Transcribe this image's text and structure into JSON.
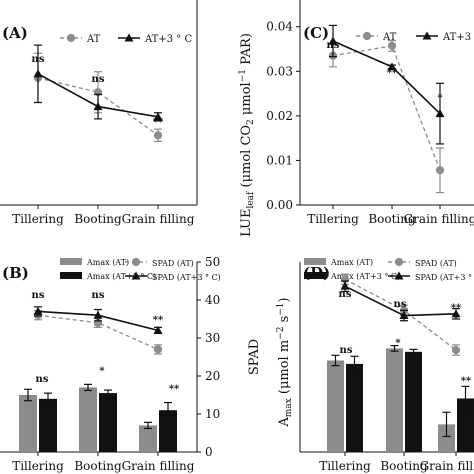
{
  "chart_data": [
    {
      "panel": "(A)",
      "type": "line",
      "categories": [
        "Tillering",
        "Booting",
        "Grain filling"
      ],
      "series": [
        {
          "name": "AT",
          "values": [
            0.62,
            0.55,
            0.34
          ],
          "err": [
            0.12,
            0.1,
            0.03
          ],
          "color": "#8c8c8c",
          "dash": true
        },
        {
          "name": "AT+3 ° C",
          "values": [
            0.64,
            0.48,
            0.43
          ],
          "err": [
            0.14,
            0.06,
            0.02
          ],
          "color": "#111111",
          "dash": false
        }
      ],
      "significance": [
        "ns",
        "ns",
        "**"
      ],
      "ylim": [
        0,
        1
      ]
    },
    {
      "panel": "(C)",
      "type": "line",
      "categories": [
        "Tillering",
        "Booting",
        "Grain filling"
      ],
      "series": [
        {
          "name": "AT",
          "values": [
            0.0335,
            0.0357,
            0.0078
          ],
          "err": [
            0.0025,
            0.0012,
            0.005
          ],
          "color": "#8c8c8c",
          "dash": true
        },
        {
          "name": "AT+3 ° C",
          "values": [
            0.0368,
            0.031,
            0.0205
          ],
          "err": [
            0.0035,
            0.0004,
            0.0068
          ],
          "color": "#111111",
          "dash": false
        }
      ],
      "significance": [
        "ns",
        "**",
        "*"
      ],
      "ylabel": "LUE_leaf (μmol CO2 μmol⁻¹ PAR)",
      "yticks": [
        "0.00",
        "0.01",
        "0.02",
        "0.03",
        "0.04"
      ],
      "ylim": [
        0,
        0.046
      ]
    },
    {
      "panel": "(B)",
      "type": "bar+line",
      "categories": [
        "Tillering",
        "Booting",
        "Grain filling"
      ],
      "bars": [
        {
          "name": "Amax (AT)",
          "values": [
            15,
            17,
            7
          ],
          "err": [
            1.5,
            0.8,
            0.8
          ],
          "color": "#8c8c8c"
        },
        {
          "name": "Amax (AT+3 ° C)",
          "values": [
            14,
            15.5,
            11
          ],
          "err": [
            1.5,
            0.8,
            2.0
          ],
          "color": "#111111"
        }
      ],
      "bar_significance": [
        "ns",
        "*",
        "**"
      ],
      "lines": [
        {
          "name": "SPAD (AT)",
          "values": [
            36,
            34,
            27
          ],
          "err": [
            1.2,
            1.2,
            1.2
          ],
          "color": "#8c8c8c",
          "dash": true
        },
        {
          "name": "SPAD (AT+3 ° C)",
          "values": [
            37,
            36,
            32
          ],
          "err": [
            1.2,
            1.5,
            0.8
          ],
          "color": "#111111",
          "dash": false
        }
      ],
      "line_significance": [
        "ns",
        "ns",
        "**"
      ],
      "y2label": "SPAD",
      "y2ticks": [
        "0",
        "10",
        "20",
        "30",
        "40",
        "50"
      ],
      "y2lim": [
        0,
        50
      ]
    },
    {
      "panel": "(D)",
      "type": "bar+line",
      "categories": [
        "Tillering",
        "Booting",
        "Grain filling"
      ],
      "bars": [
        {
          "name": "Amax (AT)",
          "values": [
            26.5,
            30,
            8
          ],
          "err": [
            1.5,
            0.8,
            3.5
          ],
          "color": "#8c8c8c"
        },
        {
          "name": "Amax (AT+3 ° C)",
          "values": [
            25.5,
            29,
            15.5
          ],
          "err": [
            2.2,
            0.7,
            3.5
          ],
          "color": "#111111"
        }
      ],
      "bar_significance": [
        "ns",
        "*",
        "**"
      ],
      "lines": [
        {
          "name": "SPAD (AT)",
          "values": [
            50,
            41,
            29.5
          ],
          "err": [
            1.5,
            1.5,
            1.5
          ],
          "color": "#8c8c8c",
          "dash": true
        },
        {
          "name": "SPAD (AT+3 ° C)",
          "values": [
            48,
            39.5,
            40
          ],
          "err": [
            1.5,
            1.5,
            1.5
          ],
          "color": "#111111",
          "dash": false
        }
      ],
      "line_significance": [
        "ns",
        "ns",
        "**"
      ],
      "ylabel": "Amax (μmol m⁻² s⁻¹)",
      "ylim": [
        0,
        55
      ]
    }
  ],
  "labels": {
    "panel_a": "(A)",
    "panel_b": "(B)",
    "panel_c": "(C)",
    "panel_d": "(D)",
    "legend_at": "AT",
    "legend_at3": "AT+3 ° C",
    "legend_amax_at": "Amax (AT)",
    "legend_amax_at3": "Amax (AT+3 ° C)",
    "legend_spad_at": "SPAD (AT)",
    "legend_spad_at3": "SPAD (AT+3 ° C)",
    "legend_amax_at_d": "Amax (AT)",
    "legend_amax_at3_d": "Amax (AT+3 ° C)",
    "legend_spad_at_d": "SPAD (AT)",
    "legend_spad_at3_d": "SPAD (AT+3 ° C)",
    "ylabel_c": "LUE",
    "ylabel_c_sub": "leaf",
    "ylabel_c_rest": " (μmol CO",
    "ylabel_c_2": "2",
    "ylabel_c_rest2": " μmol",
    "ylabel_c_sup": "−1",
    "ylabel_c_end": " PAR)",
    "y2label_b": "SPAD",
    "ylabel_d_a": "A",
    "ylabel_d_sub": "max",
    "ylabel_d_rest": " (μmol m",
    "ylabel_d_sup1": "−2",
    "ylabel_d_mid": " s",
    "ylabel_d_sup2": "−1",
    "ylabel_d_end": ")"
  }
}
